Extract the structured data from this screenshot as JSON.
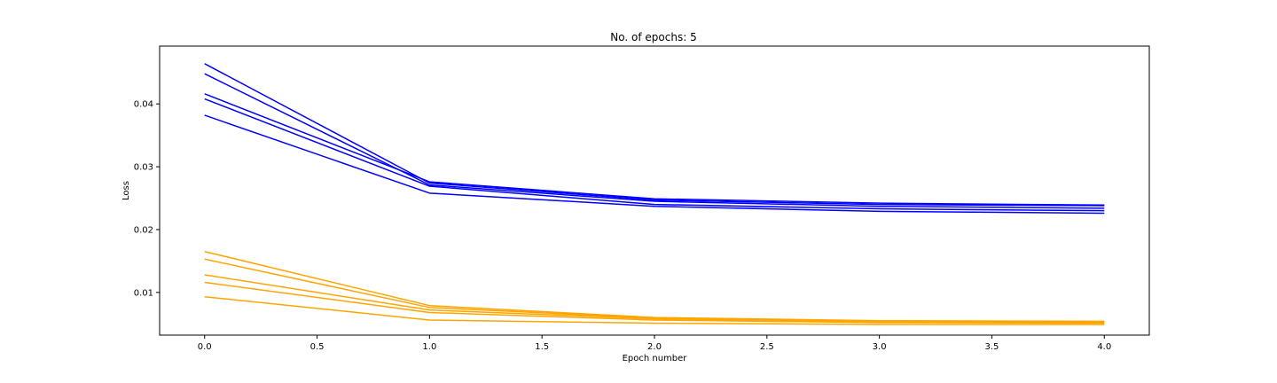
{
  "chart_data": {
    "type": "line",
    "title": "No. of epochs: 5",
    "xlabel": "Epoch number",
    "ylabel": "Loss",
    "x": [
      0,
      1,
      2,
      3,
      4
    ],
    "xlim": [
      -0.2,
      4.2
    ],
    "ylim": [
      0.0032,
      0.0492
    ],
    "xticks": [
      0.0,
      0.5,
      1.0,
      1.5,
      2.0,
      2.5,
      3.0,
      3.5,
      4.0
    ],
    "xtick_labels": [
      "0.0",
      "0.5",
      "1.0",
      "1.5",
      "2.0",
      "2.5",
      "3.0",
      "3.5",
      "4.0"
    ],
    "yticks": [
      0.01,
      0.02,
      0.03,
      0.04
    ],
    "ytick_labels": [
      "0.01",
      "0.02",
      "0.03",
      "0.04"
    ],
    "grid": false,
    "legend": "none",
    "colors": {
      "blue": "#0000ff",
      "orange": "#ffa500"
    },
    "series": [
      {
        "color": "#0000ff",
        "values": [
          0.0464,
          0.0274,
          0.0247,
          0.024,
          0.0238
        ]
      },
      {
        "color": "#0000ff",
        "values": [
          0.0448,
          0.0271,
          0.0245,
          0.0237,
          0.0234
        ]
      },
      {
        "color": "#0000ff",
        "values": [
          0.0416,
          0.0276,
          0.0249,
          0.0242,
          0.0239
        ]
      },
      {
        "color": "#0000ff",
        "values": [
          0.0408,
          0.0269,
          0.024,
          0.0233,
          0.023
        ]
      },
      {
        "color": "#0000ff",
        "values": [
          0.0382,
          0.0258,
          0.0237,
          0.0229,
          0.0226
        ]
      },
      {
        "color": "#ffa500",
        "values": [
          0.0165,
          0.0079,
          0.006,
          0.0055,
          0.0054
        ]
      },
      {
        "color": "#ffa500",
        "values": [
          0.0153,
          0.0076,
          0.0059,
          0.0054,
          0.0053
        ]
      },
      {
        "color": "#ffa500",
        "values": [
          0.0128,
          0.0072,
          0.0058,
          0.0053,
          0.0052
        ]
      },
      {
        "color": "#ffa500",
        "values": [
          0.0116,
          0.0068,
          0.0056,
          0.0052,
          0.0051
        ]
      },
      {
        "color": "#ffa500",
        "values": [
          0.0093,
          0.0056,
          0.0051,
          0.0049,
          0.0049
        ]
      }
    ]
  }
}
